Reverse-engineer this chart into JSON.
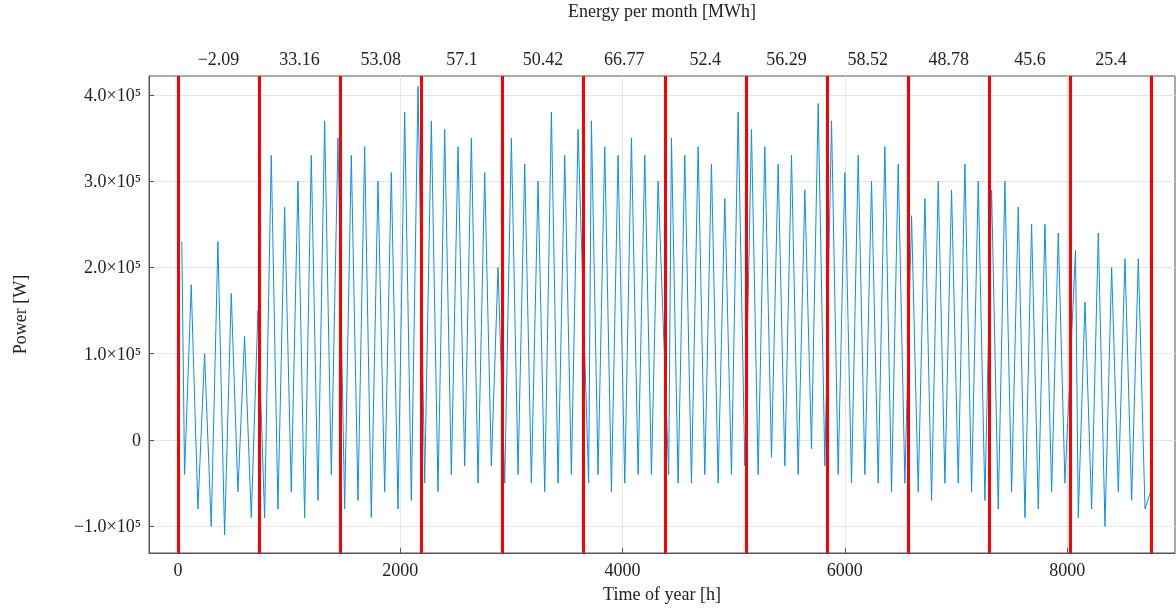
{
  "chart_data": {
    "type": "line",
    "xlabel": "Time of year [h]",
    "ylabel": "Power [W]",
    "x2label": "Energy per month [MWh]",
    "xlim": [
      -260,
      8970
    ],
    "xticks": [
      0,
      2000,
      4000,
      6000,
      8000
    ],
    "ylim": [
      -131000,
      422000
    ],
    "yticks": [
      {
        "value": -100000,
        "label": "−1.0×10⁵"
      },
      0,
      {
        "value": 100000,
        "label": "1.0×10⁵"
      },
      {
        "value": 200000,
        "label": "2.0×10⁵"
      },
      {
        "value": 300000,
        "label": "3.0×10⁵"
      },
      {
        "value": 400000,
        "label": "4.0×10⁵"
      }
    ],
    "annotations": [
      "−2.09",
      "33.16",
      "53.08",
      "57.1",
      "50.42",
      "66.77",
      "52.4",
      "56.29",
      "58.52",
      "48.78",
      "45.6",
      "25.4"
    ],
    "grid": true,
    "marker": "none",
    "ref_lines": [
      {
        "axis": "x",
        "value": 0,
        "color": "#ff0000"
      },
      {
        "axis": "x",
        "value": 730,
        "color": "#ff0000"
      },
      {
        "axis": "x",
        "value": 1460,
        "color": "#ff0000"
      },
      {
        "axis": "x",
        "value": 2190,
        "color": "#ff0000"
      },
      {
        "axis": "x",
        "value": 2920,
        "color": "#ff0000"
      },
      {
        "axis": "x",
        "value": 3650,
        "color": "#ff0000"
      },
      {
        "axis": "x",
        "value": 4380,
        "color": "#ff0000"
      },
      {
        "axis": "x",
        "value": 5110,
        "color": "#ff0000"
      },
      {
        "axis": "x",
        "value": 5840,
        "color": "#ff0000"
      },
      {
        "axis": "x",
        "value": 6570,
        "color": "#ff0000"
      },
      {
        "axis": "x",
        "value": 7300,
        "color": "#ff0000"
      },
      {
        "axis": "x",
        "value": 8030,
        "color": "#ff0000"
      },
      {
        "axis": "x",
        "value": 8760,
        "color": "#ff0000"
      }
    ],
    "series": [
      {
        "color": "#0a8fe8",
        "x": [
          35,
          60,
          120,
          180,
          240,
          300,
          360,
          420,
          480,
          540,
          600,
          660,
          720,
          780,
          840,
          900,
          960,
          1020,
          1080,
          1140,
          1200,
          1260,
          1320,
          1380,
          1440,
          1500,
          1560,
          1620,
          1680,
          1740,
          1800,
          1860,
          1920,
          1980,
          2040,
          2100,
          2160,
          2220,
          2280,
          2340,
          2400,
          2460,
          2520,
          2580,
          2640,
          2700,
          2760,
          2820,
          2880,
          2940,
          3000,
          3060,
          3120,
          3180,
          3240,
          3300,
          3360,
          3420,
          3480,
          3540,
          3600,
          3695,
          3720,
          3780,
          3840,
          3900,
          3960,
          4020,
          4080,
          4140,
          4200,
          4260,
          4320,
          4415,
          4440,
          4500,
          4560,
          4620,
          4680,
          4740,
          4800,
          4860,
          4920,
          4980,
          5040,
          5100,
          5160,
          5220,
          5280,
          5340,
          5400,
          5460,
          5520,
          5580,
          5640,
          5700,
          5760,
          5820,
          5880,
          5940,
          6000,
          6060,
          6120,
          6180,
          6240,
          6300,
          6360,
          6420,
          6480,
          6540,
          6600,
          6660,
          6720,
          6780,
          6840,
          6900,
          6960,
          7020,
          7080,
          7140,
          7200,
          7260,
          7320,
          7380,
          7440,
          7500,
          7560,
          7620,
          7680,
          7740,
          7800,
          7860,
          7920,
          7980,
          8075,
          8100,
          8160,
          8220,
          8280,
          8340,
          8400,
          8460,
          8520,
          8580,
          8640,
          8700,
          8750
        ],
        "values": [
          230000,
          -40000,
          180000,
          -80000,
          100000,
          -100000,
          230000,
          -110000,
          170000,
          -60000,
          120000,
          -90000,
          150000,
          -90000,
          330000,
          -80000,
          270000,
          -60000,
          300000,
          -90000,
          330000,
          -70000,
          370000,
          -40000,
          350000,
          -80000,
          330000,
          -70000,
          340000,
          -90000,
          300000,
          -60000,
          310000,
          -80000,
          380000,
          -70000,
          410000,
          -50000,
          370000,
          -60000,
          360000,
          -40000,
          340000,
          -30000,
          350000,
          -50000,
          310000,
          -30000,
          200000,
          -50000,
          350000,
          -40000,
          320000,
          -50000,
          300000,
          -60000,
          380000,
          -50000,
          330000,
          -40000,
          360000,
          -50000,
          370000,
          -40000,
          340000,
          -60000,
          330000,
          -50000,
          350000,
          -40000,
          330000,
          -40000,
          300000,
          -40000,
          350000,
          -50000,
          330000,
          -50000,
          340000,
          -40000,
          320000,
          -50000,
          280000,
          -40000,
          380000,
          -30000,
          360000,
          -40000,
          340000,
          -20000,
          320000,
          -30000,
          330000,
          -40000,
          290000,
          -10000,
          390000,
          -30000,
          370000,
          -40000,
          310000,
          -50000,
          330000,
          -40000,
          300000,
          -50000,
          340000,
          -60000,
          320000,
          -50000,
          260000,
          -60000,
          280000,
          -70000,
          300000,
          -50000,
          290000,
          -50000,
          320000,
          -60000,
          300000,
          -70000,
          290000,
          -80000,
          300000,
          -60000,
          270000,
          -90000,
          250000,
          -80000,
          250000,
          -60000,
          240000,
          -50000,
          220000,
          -90000,
          160000,
          -80000,
          240000,
          -100000,
          200000,
          -60000,
          210000,
          -70000,
          210000,
          -80000,
          -60000
        ]
      }
    ]
  }
}
